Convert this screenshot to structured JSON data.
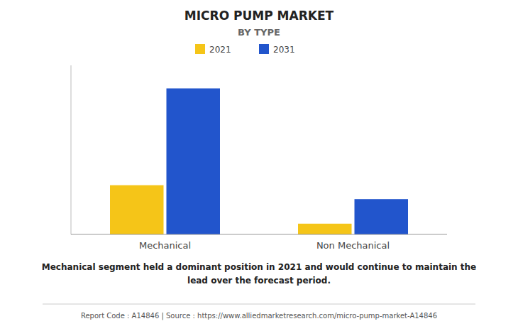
{
  "chart_data": {
    "type": "bar",
    "title": "MICRO PUMP MARKET",
    "subtitle": "BY TYPE",
    "categories": [
      "Mechanical",
      "Non Mechanical"
    ],
    "series": [
      {
        "name": "2021",
        "color": "#F5C518",
        "values": [
          3.2,
          0.7
        ]
      },
      {
        "name": "2031",
        "color": "#2255CC",
        "values": [
          9.5,
          2.3
        ]
      }
    ],
    "ylim": [
      0,
      11
    ],
    "yticks": [],
    "grid": false,
    "legend": "top",
    "tick_labels": "x",
    "annotations": [
      "Mechanical segment held a dominant position in 2021 and would continue to maintain the\nlead over the forecast period.",
      "Report Code : A14846   |   Source : https://www.alliedmarketresearch.com/micro-pump-market-A14846"
    ]
  }
}
